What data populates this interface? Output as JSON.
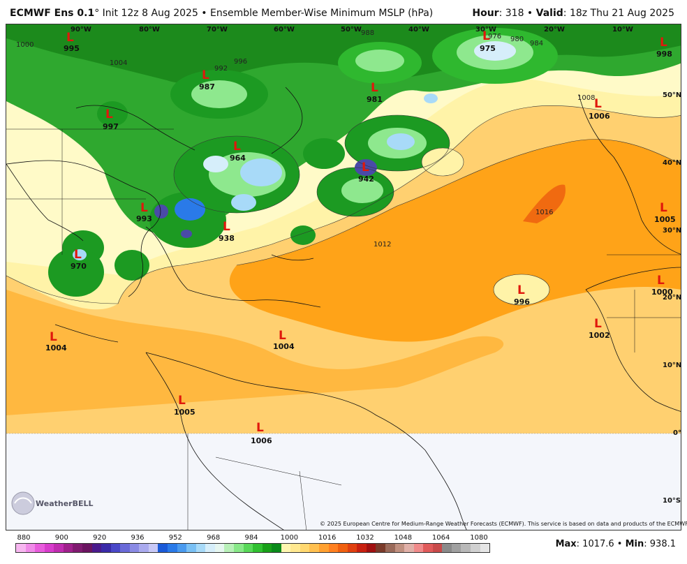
{
  "header": {
    "model": "ECMWF Ens 0.1",
    "degree": "°",
    "init": " Init 12z 8 Aug 2025 • Ensemble Member-Wise Minimum MSLP (hPa)",
    "hour_label": "Hour",
    "hour_value": ": 318 • ",
    "valid_label": "Valid",
    "valid_value": ": 18z Thu 21 Aug 2025"
  },
  "map": {
    "longitude_labels": [
      "90°W",
      "80°W",
      "70°W",
      "60°W",
      "50°W",
      "40°W",
      "30°W",
      "20°W",
      "10°W"
    ],
    "latitude_labels": [
      "50°N",
      "40°N",
      "30°N",
      "20°N",
      "10°N",
      "0°",
      "10°S"
    ],
    "lows": [
      {
        "value": "995"
      },
      {
        "value": "987"
      },
      {
        "value": "997"
      },
      {
        "value": "964"
      },
      {
        "value": "981"
      },
      {
        "value": "975"
      },
      {
        "value": "998"
      },
      {
        "value": "1006"
      },
      {
        "value": "942"
      },
      {
        "value": "993"
      },
      {
        "value": "938"
      },
      {
        "value": "970"
      },
      {
        "value": "1005"
      },
      {
        "value": "1000"
      },
      {
        "value": "996"
      },
      {
        "value": "1002"
      },
      {
        "value": "1004"
      },
      {
        "value": "1004"
      },
      {
        "value": "1005"
      },
      {
        "value": "1006"
      }
    ],
    "low_symbol": "L",
    "isobar_labels": [
      "1000",
      "1004",
      "1008",
      "1012",
      "1016",
      "996",
      "992",
      "988",
      "984",
      "980",
      "976"
    ]
  },
  "footer": {
    "copyright": "© 2025 European Centre for Medium-Range Weather Forecasts (ECMWF). This service is based on data and products of the ECMWF.",
    "logo_text": "WeatherBELL",
    "max_label": "Max",
    "max_value": ": 1017.6 • ",
    "min_label": "Min",
    "min_value": ": 938.1"
  },
  "colorbar": {
    "tick_labels": [
      "880",
      "900",
      "920",
      "936",
      "952",
      "968",
      "984",
      "1000",
      "1016",
      "1032",
      "1048",
      "1064",
      "1080"
    ],
    "colors": [
      "#f7b6f0",
      "#f08ae8",
      "#e85cdc",
      "#d83ccc",
      "#c02cb0",
      "#a0208c",
      "#801a70",
      "#6a1460",
      "#4a1a8c",
      "#3a2aa8",
      "#4a48c8",
      "#6a6ad8",
      "#8a8ae4",
      "#aaaaee",
      "#c8c8f6",
      "#1a5ad8",
      "#2a7ae8",
      "#4a9aee",
      "#7ac0f4",
      "#a8daf8",
      "#d6eefa",
      "#e6f6f0",
      "#b8f0b8",
      "#88e888",
      "#58d858",
      "#30c030",
      "#18a018",
      "#0a8a1a",
      "#fff6b0",
      "#ffe890",
      "#ffd870",
      "#ffc050",
      "#ffa030",
      "#ff8020",
      "#f06010",
      "#e04010",
      "#c82010",
      "#a01010",
      "#7a3a2a",
      "#9a6a5a",
      "#c09080",
      "#e0b0a8",
      "#f08a8a",
      "#e05a5a",
      "#c84a4a",
      "#8a8a8a",
      "#a0a0a0",
      "#b8b8b8",
      "#d0d0d0",
      "#e6e6e6"
    ]
  }
}
